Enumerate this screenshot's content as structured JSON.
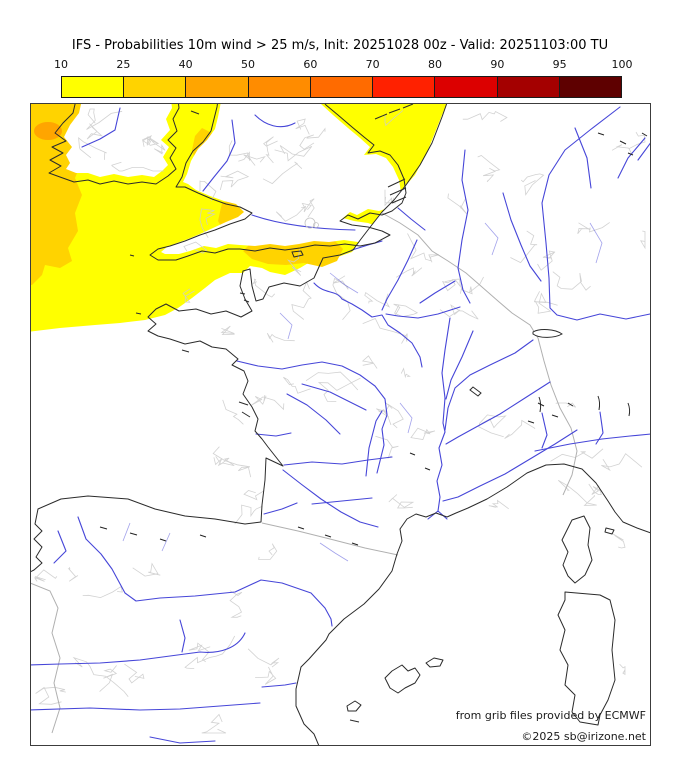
{
  "title": "IFS - Probabilities 10m wind > 25 m/s, Init: 20251028 00z - Valid: 20251103:00 TU",
  "colorbar": {
    "tick_labels": [
      "10",
      "25",
      "40",
      "50",
      "60",
      "70",
      "80",
      "90",
      "95",
      "100"
    ],
    "segments": [
      {
        "range": "10-25",
        "color": "#ffff00"
      },
      {
        "range": "25-40",
        "color": "#ffd300"
      },
      {
        "range": "40-50",
        "color": "#ffa500"
      },
      {
        "range": "50-60",
        "color": "#ff8c00"
      },
      {
        "range": "60-70",
        "color": "#ff6b00"
      },
      {
        "range": "70-80",
        "color": "#ff2100"
      },
      {
        "range": "80-90",
        "color": "#dc0000"
      },
      {
        "range": "90-95",
        "color": "#a40000"
      },
      {
        "range": "95-100",
        "color": "#5e0000"
      }
    ]
  },
  "map": {
    "levels": [
      {
        "range": "10-25",
        "color": "#ffff00"
      },
      {
        "range": "25-40",
        "color": "#ffd300"
      },
      {
        "range": "40-50",
        "color": "#ffa500"
      }
    ],
    "colors": {
      "coast": "#2b2b2b",
      "river": "#4646d8",
      "admin": "#cdcdcd",
      "border": "#b0b0b0",
      "frame": "#3c3c3c",
      "land": "#ffffff"
    }
  },
  "credits": {
    "provider": "from grib files provided by ECMWF",
    "copyright": "©2025 sb@irizone.net"
  }
}
